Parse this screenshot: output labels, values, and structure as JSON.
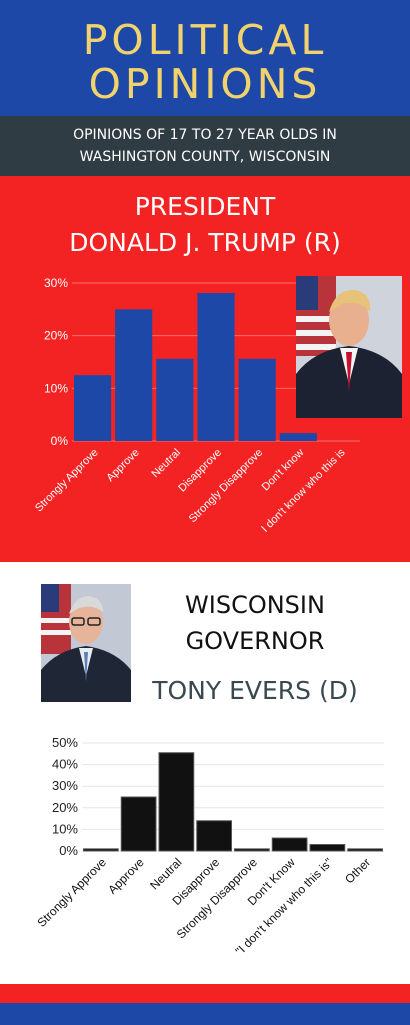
{
  "header": {
    "title_line1": "POLITICAL",
    "title_line2": "OPINIONS",
    "subtitle_line1": "OPINIONS OF 17 TO 27 YEAR OLDS IN",
    "subtitle_line2": "WASHINGTON COUNTY, WISCONSIN"
  },
  "president": {
    "heading_line1": "PRESIDENT",
    "heading_line2": "DONALD J. TRUMP (R)"
  },
  "governor": {
    "heading_line1": "WISCONSIN",
    "heading_line2": "GOVERNOR",
    "heading_line3": "TONY EVERS (D)"
  },
  "colors": {
    "header_blue": "#1e48a8",
    "title_gold": "#f2d36b",
    "subtitle_gray": "#2f3c44",
    "section_red": "#f42323",
    "bar_blue": "#1e48a8",
    "bar_black": "#111111"
  },
  "chart_data": [
    {
      "type": "bar",
      "title": "",
      "xlabel": "",
      "ylabel": "",
      "categories": [
        "Strongly Approve",
        "Approve",
        "Neutral",
        "Disapprove",
        "Strongly Disapprove",
        "Don't know",
        "I don't know who this is"
      ],
      "values": [
        12.5,
        25,
        15.6,
        28.1,
        15.6,
        1.5,
        0
      ],
      "ylim": [
        0,
        30
      ],
      "yticks": [
        "0%",
        "10%",
        "20%",
        "30%"
      ],
      "grid": true
    },
    {
      "type": "bar",
      "title": "",
      "xlabel": "",
      "ylabel": "",
      "categories": [
        "Strongly Approve",
        "Approve",
        "Neutral",
        "Disapprove",
        "Strongly Disapprove",
        "Don't Know",
        "\"I don't know who this is\"",
        "Other"
      ],
      "values": [
        1,
        25,
        45.5,
        14,
        1,
        6,
        3,
        1
      ],
      "ylim": [
        0,
        50
      ],
      "yticks": [
        "0%",
        "10%",
        "20%",
        "30%",
        "40%",
        "50%"
      ],
      "grid": true
    }
  ]
}
